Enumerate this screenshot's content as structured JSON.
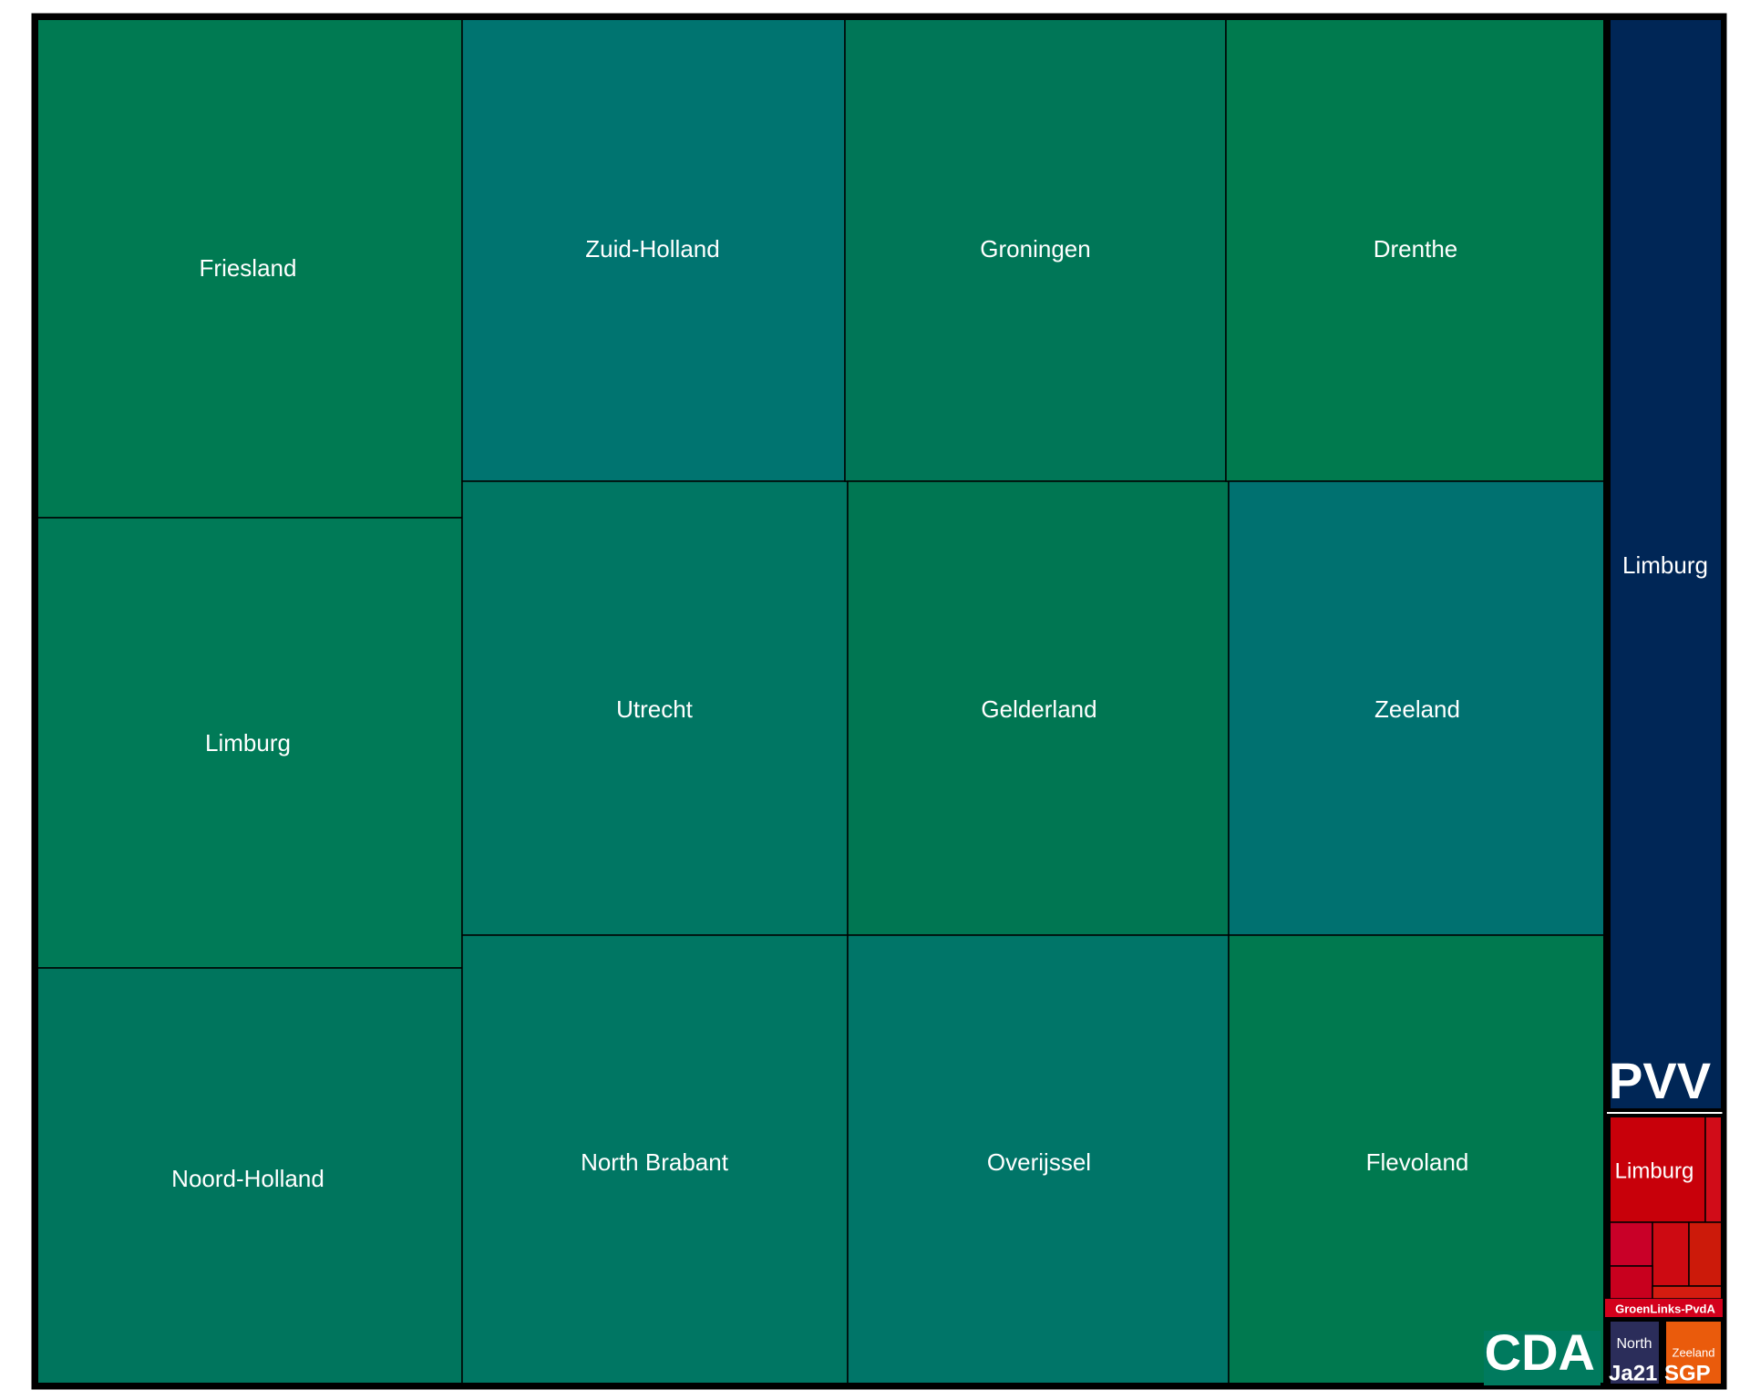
{
  "chart_data": {
    "type": "treemap",
    "title": "",
    "groups": [
      {
        "name": "CDA",
        "label": "CDA",
        "color": "#007a5e",
        "children": [
          {
            "name": "Friesland",
            "label": "Friesland",
            "color": "#007a52"
          },
          {
            "name": "Limburg",
            "label": "Limburg",
            "color": "#007a57"
          },
          {
            "name": "Noord-Holland",
            "label": "Noord-Holland",
            "color": "#00755d"
          },
          {
            "name": "Zuid-Holland",
            "label": "Zuid-Holland",
            "color": "#007470"
          },
          {
            "name": "Utrecht",
            "label": "Utrecht",
            "color": "#007663"
          },
          {
            "name": "North Brabant",
            "label": "North Brabant",
            "color": "#007663"
          },
          {
            "name": "Groningen",
            "label": "Groningen",
            "color": "#007657"
          },
          {
            "name": "Gelderland",
            "label": "Gelderland",
            "color": "#007652"
          },
          {
            "name": "Overijssel",
            "label": "Overijssel",
            "color": "#007568"
          },
          {
            "name": "Drenthe",
            "label": "Drenthe",
            "color": "#007a4e"
          },
          {
            "name": "Zeeland",
            "label": "Zeeland",
            "color": "#007170"
          },
          {
            "name": "Flevoland",
            "label": "Flevoland",
            "color": "#00794f"
          }
        ]
      },
      {
        "name": "PVV",
        "label": "PVV",
        "color": "#002656",
        "children": [
          {
            "name": "Limburg",
            "label": "Limburg",
            "color": "#002656"
          }
        ]
      },
      {
        "name": "GroenLinks-PvdA",
        "label": "GroenLinks-PvdA",
        "color": "#d3001c",
        "children": [
          {
            "name": "Limburg",
            "label": "Limburg",
            "color": "#c8000a"
          },
          {
            "name": "",
            "label": "",
            "color": "#d10c18"
          },
          {
            "name": "",
            "label": "",
            "color": "#c90028"
          },
          {
            "name": "",
            "label": "",
            "color": "#cd0a12"
          },
          {
            "name": "",
            "label": "",
            "color": "#cc1a0a"
          },
          {
            "name": "",
            "label": "",
            "color": "#c8001e"
          },
          {
            "name": "",
            "label": "",
            "color": "#d41c10"
          }
        ]
      },
      {
        "name": "Ja21",
        "label": "Ja21",
        "color": "#2b2d5a",
        "children": [
          {
            "name": "North Brabant",
            "label": "North",
            "color": "#2b2d5a"
          }
        ]
      },
      {
        "name": "SGP",
        "label": "SGP",
        "color": "#ea5b0c",
        "children": [
          {
            "name": "Zeeland",
            "label": "Zeeland",
            "color": "#ea5b0c"
          }
        ]
      }
    ]
  }
}
